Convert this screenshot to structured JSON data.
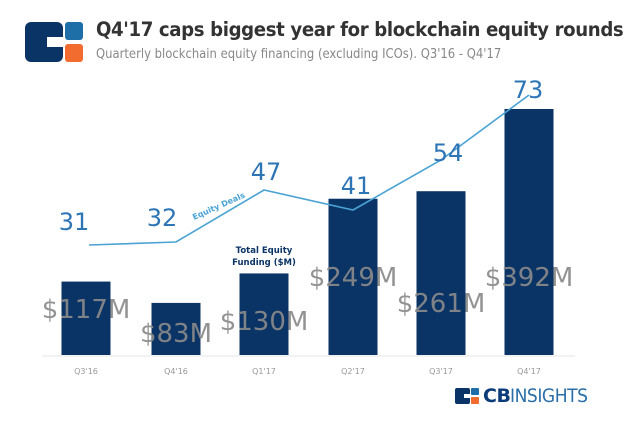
{
  "header": {
    "title": "Q4'17 caps biggest year for blockchain equity rounds",
    "subtitle": "Quarterly blockchain equity financing (excluding ICOs). Q3'16 - Q4'17"
  },
  "brand": {
    "logo_icon": "cb-insights-logo-icon",
    "name_bold": "CB",
    "name_regular": "INSIGHTS"
  },
  "colors": {
    "bar": "#0b3466",
    "line": "#4aa3d4",
    "deal_label": "#2e75b6",
    "funding_label": "#8a8a8a",
    "logo_dark": "#0b3466",
    "logo_mid": "#1e6fa8",
    "logo_orange": "#f26b2f"
  },
  "chart_data": {
    "type": "bar",
    "title": "Q4'17 caps biggest year for blockchain equity rounds",
    "subtitle": "Quarterly blockchain equity financing (excluding ICOs). Q3'16 - Q4'17",
    "categories": [
      "Q3'16",
      "Q4'16",
      "Q1'17",
      "Q2'17",
      "Q3'17",
      "Q4'17"
    ],
    "series": [
      {
        "name": "Total Equity Funding ($M)",
        "type": "bar",
        "values": [
          117,
          83,
          130,
          249,
          261,
          392
        ],
        "labels": [
          "$117M",
          "$83M",
          "$130M",
          "$249M",
          "$261M",
          "$392M"
        ]
      },
      {
        "name": "Equity Deals",
        "type": "line",
        "values": [
          31,
          32,
          47,
          41,
          54,
          73
        ],
        "labels": [
          "31",
          "32",
          "47",
          "41",
          "54",
          "73"
        ]
      }
    ],
    "annotations": {
      "bar_series_label": [
        "Total Equity",
        "Funding ($M)"
      ],
      "line_series_label": "Equity Deals"
    },
    "xlabel": "",
    "ylabel": "",
    "ylim": [
      0,
      400
    ],
    "line_ylim": [
      0,
      100
    ],
    "grid": false,
    "legend": "none"
  }
}
